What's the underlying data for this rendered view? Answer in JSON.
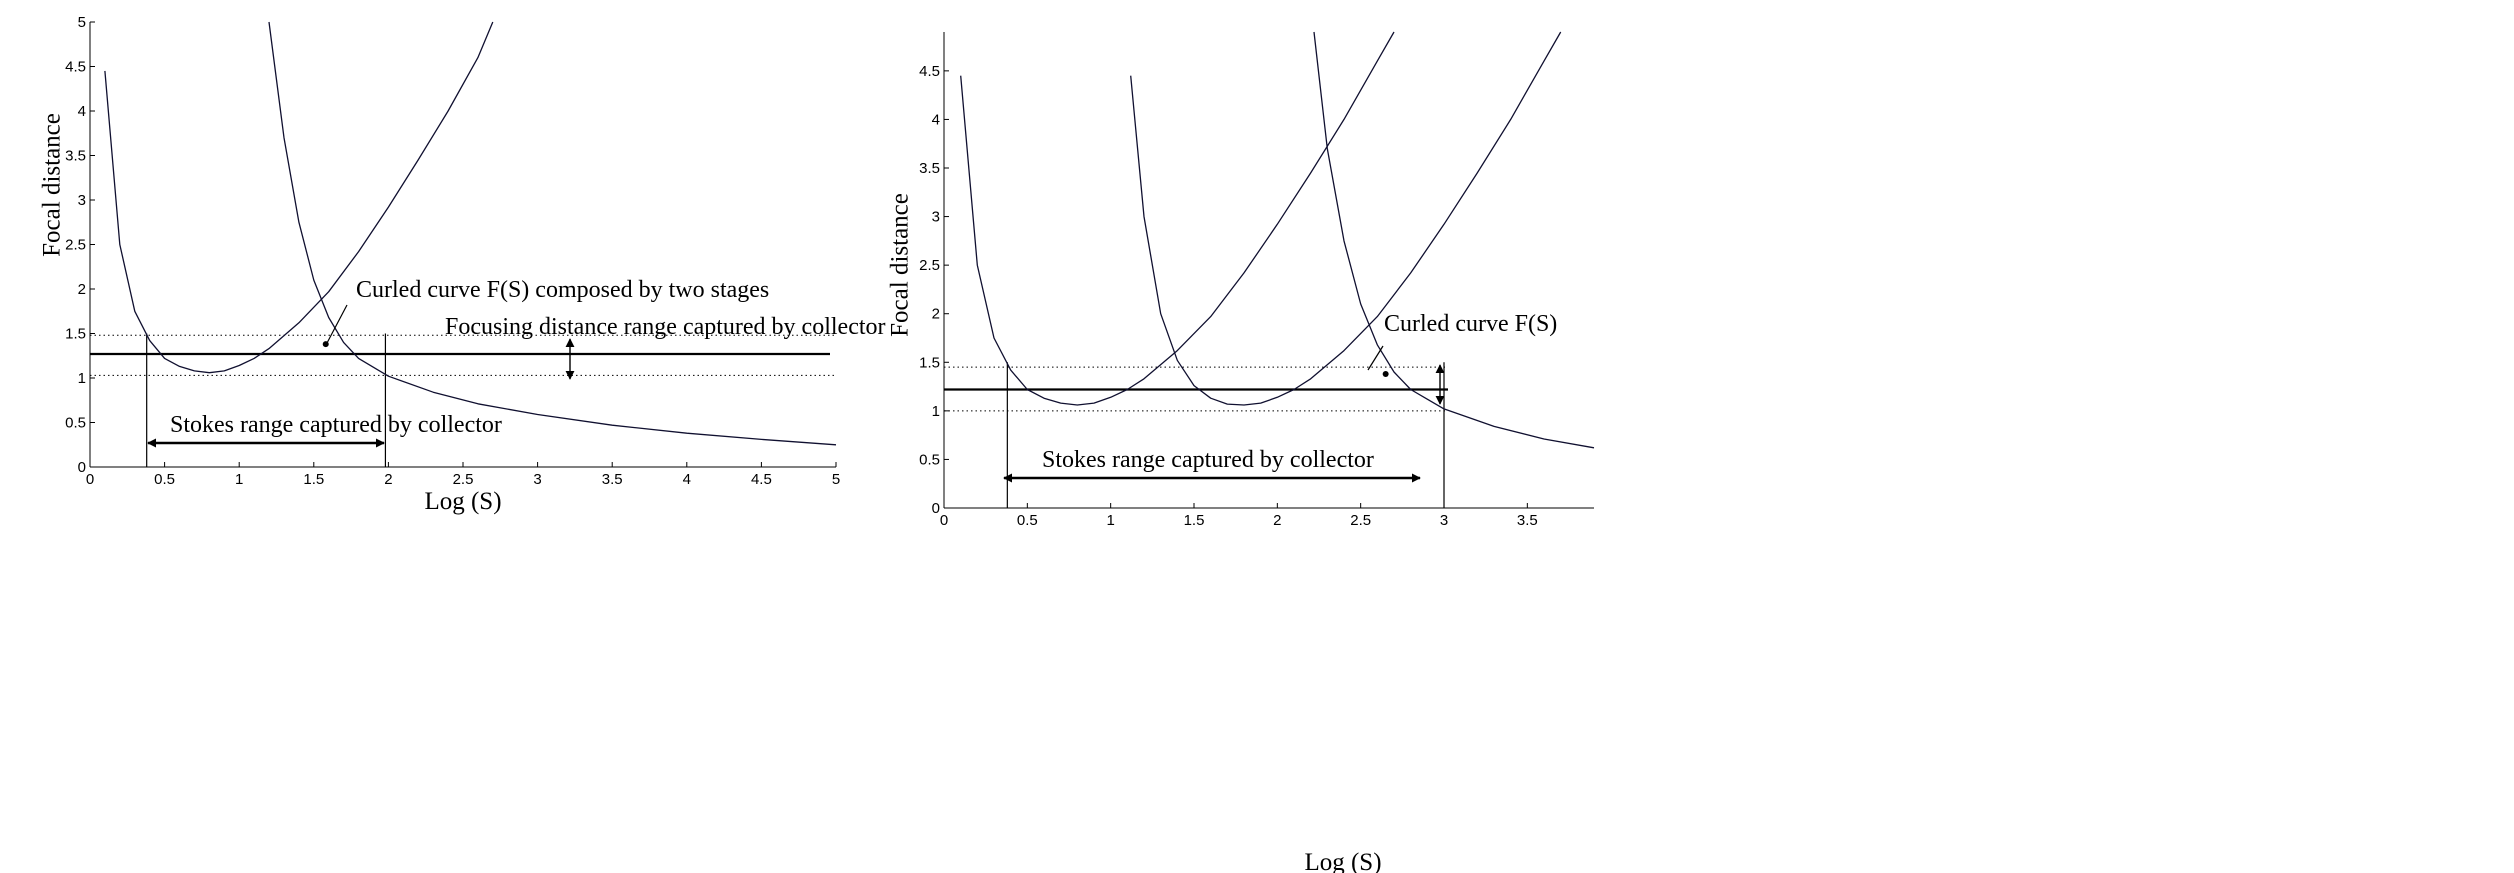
{
  "chart_data": [
    {
      "type": "line",
      "title": "",
      "xlabel": "Log (S)",
      "ylabel": "Focal distance",
      "xlim": [
        0,
        5
      ],
      "ylim": [
        0,
        5
      ],
      "xticks": [
        "0",
        "0.5",
        "1",
        "1.5",
        "2",
        "2.5",
        "3",
        "3.5",
        "4",
        "4.5",
        "5"
      ],
      "yticks": [
        "0",
        "0.5",
        "1",
        "1.5",
        "2",
        "2.5",
        "3",
        "3.5",
        "4",
        "4.5",
        "5"
      ],
      "grid": false,
      "series": [
        {
          "points": [
            [
              0.1,
              4.45
            ],
            [
              0.2,
              2.5
            ],
            [
              0.3,
              1.75
            ],
            [
              0.4,
              1.42
            ],
            [
              0.5,
              1.22
            ],
            [
              0.6,
              1.13
            ],
            [
              0.7,
              1.08
            ],
            [
              0.8,
              1.06
            ],
            [
              0.9,
              1.08
            ],
            [
              1.0,
              1.14
            ],
            [
              1.1,
              1.22
            ],
            [
              1.2,
              1.33
            ],
            [
              1.4,
              1.62
            ],
            [
              1.6,
              1.97
            ],
            [
              1.8,
              2.42
            ],
            [
              2.0,
              2.92
            ],
            [
              2.2,
              3.45
            ],
            [
              2.4,
              4.0
            ],
            [
              2.6,
              4.6
            ],
            [
              2.7,
              5.0
            ]
          ]
        },
        {
          "points": [
            [
              1.2,
              5.0
            ],
            [
              1.3,
              3.7
            ],
            [
              1.4,
              2.75
            ],
            [
              1.5,
              2.1
            ],
            [
              1.6,
              1.68
            ],
            [
              1.7,
              1.4
            ],
            [
              1.8,
              1.22
            ],
            [
              1.9,
              1.12
            ],
            [
              2.0,
              1.02
            ],
            [
              2.3,
              0.84
            ],
            [
              2.6,
              0.71
            ],
            [
              3.0,
              0.59
            ],
            [
              3.5,
              0.47
            ],
            [
              4.0,
              0.38
            ],
            [
              4.5,
              0.31
            ],
            [
              5.0,
              0.25
            ]
          ]
        }
      ],
      "reference_lines": [
        {
          "axis": "y",
          "value": 1.27,
          "style": "solid"
        },
        {
          "axis": "y",
          "value": 1.48,
          "style": "dotted"
        },
        {
          "axis": "y",
          "value": 1.03,
          "style": "dotted"
        },
        {
          "axis": "x",
          "value": 0.38,
          "style": "solid"
        },
        {
          "axis": "x",
          "value": 1.98,
          "style": "solid"
        }
      ],
      "marker": {
        "x": 1.58,
        "y": 1.38
      },
      "annotations": [
        "Curled curve F(S) composed by two stages",
        "Focusing distance range captured by collector",
        "Stokes range captured by collector"
      ]
    },
    {
      "type": "line",
      "title": "",
      "xlabel": "Log (S)",
      "ylabel": "Focal distance",
      "xlim": [
        0,
        3.9
      ],
      "ylim": [
        0,
        4.9
      ],
      "xticks": [
        "0",
        "0.5",
        "1",
        "1.5",
        "2",
        "2.5",
        "3",
        "3.5"
      ],
      "yticks": [
        "0",
        "0.5",
        "1",
        "1.5",
        "2",
        "2.5",
        "3",
        "3.5",
        "4",
        "4.5"
      ],
      "grid": false,
      "series": [
        {
          "points": [
            [
              0.1,
              4.45
            ],
            [
              0.2,
              2.5
            ],
            [
              0.3,
              1.75
            ],
            [
              0.4,
              1.42
            ],
            [
              0.5,
              1.22
            ],
            [
              0.6,
              1.13
            ],
            [
              0.7,
              1.08
            ],
            [
              0.8,
              1.06
            ],
            [
              0.9,
              1.08
            ],
            [
              1.0,
              1.14
            ],
            [
              1.1,
              1.22
            ],
            [
              1.2,
              1.33
            ],
            [
              1.4,
              1.62
            ],
            [
              1.6,
              1.97
            ],
            [
              1.8,
              2.42
            ],
            [
              2.0,
              2.92
            ],
            [
              2.2,
              3.45
            ],
            [
              2.4,
              4.0
            ],
            [
              2.6,
              4.6
            ],
            [
              2.7,
              4.9
            ]
          ]
        },
        {
          "points": [
            [
              1.12,
              4.45
            ],
            [
              1.2,
              3.0
            ],
            [
              1.3,
              2.0
            ],
            [
              1.4,
              1.52
            ],
            [
              1.5,
              1.26
            ],
            [
              1.6,
              1.13
            ],
            [
              1.7,
              1.07
            ],
            [
              1.8,
              1.06
            ],
            [
              1.9,
              1.08
            ],
            [
              2.0,
              1.14
            ],
            [
              2.1,
              1.22
            ],
            [
              2.2,
              1.33
            ],
            [
              2.4,
              1.62
            ],
            [
              2.6,
              1.97
            ],
            [
              2.8,
              2.42
            ],
            [
              3.0,
              2.92
            ],
            [
              3.2,
              3.45
            ],
            [
              3.4,
              4.0
            ],
            [
              3.6,
              4.6
            ],
            [
              3.7,
              4.9
            ]
          ]
        },
        {
          "points": [
            [
              2.22,
              4.9
            ],
            [
              2.3,
              3.7
            ],
            [
              2.4,
              2.75
            ],
            [
              2.5,
              2.1
            ],
            [
              2.6,
              1.68
            ],
            [
              2.7,
              1.4
            ],
            [
              2.8,
              1.22
            ],
            [
              2.9,
              1.12
            ],
            [
              3.0,
              1.02
            ],
            [
              3.3,
              0.84
            ],
            [
              3.6,
              0.71
            ],
            [
              3.9,
              0.62
            ]
          ]
        }
      ],
      "reference_lines": [
        {
          "axis": "y",
          "value": 1.22,
          "style": "solid"
        },
        {
          "axis": "y",
          "value": 1.45,
          "style": "dotted"
        },
        {
          "axis": "y",
          "value": 1.0,
          "style": "dotted"
        },
        {
          "axis": "x",
          "value": 0.38,
          "style": "solid"
        },
        {
          "axis": "x",
          "value": 3.0,
          "style": "solid"
        }
      ],
      "marker": {
        "x": 2.65,
        "y": 1.38
      },
      "annotations": [
        "Curled curve F(S)",
        "Stokes range captured by collector"
      ]
    }
  ]
}
